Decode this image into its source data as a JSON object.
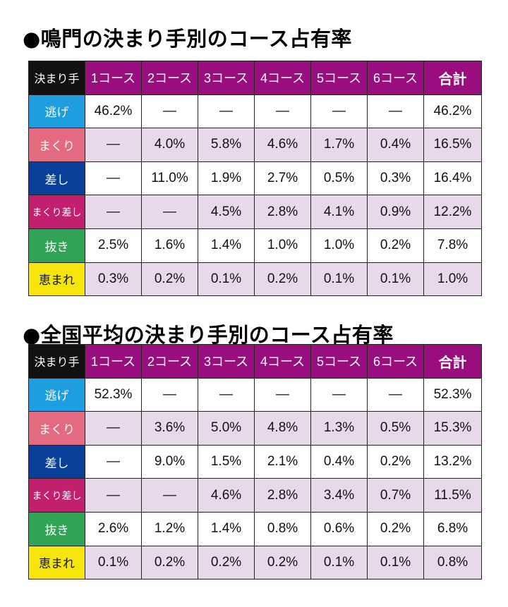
{
  "colors": {
    "header_bg": "#9a0d7f",
    "corner_bg": "#111111",
    "row_alt_bg": "#e7d9ea",
    "nige": "#1d9ee0",
    "makuri": "#e36a7f",
    "sashi": "#0a3f9a",
    "makurizashi": "#c21f6f",
    "nuki": "#2fa455",
    "megumare": "#f5e50c"
  },
  "header": {
    "corner": "決まり手",
    "courses": [
      "1コース",
      "2コース",
      "3コース",
      "4コース",
      "5コース",
      "6コース"
    ],
    "total": "合計"
  },
  "tables": [
    {
      "title": "●鳴門の決まり手別のコース占有率",
      "rows": [
        {
          "label": "逃げ",
          "color": "#1d9ee0",
          "text_color": "#ffffff",
          "cells": [
            "46.2%",
            "—",
            "—",
            "—",
            "—",
            "—"
          ],
          "total": "46.2%"
        },
        {
          "label": "まくり",
          "color": "#e36a7f",
          "text_color": "#ffffff",
          "cells": [
            "—",
            "4.0%",
            "5.8%",
            "4.6%",
            "1.7%",
            "0.4%"
          ],
          "total": "16.5%"
        },
        {
          "label": "差し",
          "color": "#0a3f9a",
          "text_color": "#ffffff",
          "cells": [
            "—",
            "11.0%",
            "1.9%",
            "2.7%",
            "0.5%",
            "0.3%"
          ],
          "total": "16.4%"
        },
        {
          "label": "まくり差し",
          "color": "#c21f6f",
          "text_color": "#ffffff",
          "cells": [
            "—",
            "—",
            "4.5%",
            "2.8%",
            "4.1%",
            "0.9%"
          ],
          "total": "12.2%"
        },
        {
          "label": "抜き",
          "color": "#2fa455",
          "text_color": "#ffffff",
          "cells": [
            "2.5%",
            "1.6%",
            "1.4%",
            "1.0%",
            "1.0%",
            "0.2%"
          ],
          "total": "7.8%"
        },
        {
          "label": "恵まれ",
          "color": "#f5e50c",
          "text_color": "#111111",
          "cells": [
            "0.3%",
            "0.2%",
            "0.1%",
            "0.2%",
            "0.1%",
            "0.1%"
          ],
          "total": "1.0%"
        }
      ]
    },
    {
      "title": "●全国平均の決まり手別のコース占有率",
      "rows": [
        {
          "label": "逃げ",
          "color": "#1d9ee0",
          "text_color": "#ffffff",
          "cells": [
            "52.3%",
            "—",
            "—",
            "—",
            "—",
            "—"
          ],
          "total": "52.3%"
        },
        {
          "label": "まくり",
          "color": "#e36a7f",
          "text_color": "#ffffff",
          "cells": [
            "—",
            "3.6%",
            "5.0%",
            "4.8%",
            "1.3%",
            "0.5%"
          ],
          "total": "15.3%"
        },
        {
          "label": "差し",
          "color": "#0a3f9a",
          "text_color": "#ffffff",
          "cells": [
            "—",
            "9.0%",
            "1.5%",
            "2.1%",
            "0.4%",
            "0.2%"
          ],
          "total": "13.2%"
        },
        {
          "label": "まくり差し",
          "color": "#c21f6f",
          "text_color": "#ffffff",
          "cells": [
            "—",
            "—",
            "4.6%",
            "2.8%",
            "3.4%",
            "0.7%"
          ],
          "total": "11.5%"
        },
        {
          "label": "抜き",
          "color": "#2fa455",
          "text_color": "#ffffff",
          "cells": [
            "2.6%",
            "1.2%",
            "1.4%",
            "0.8%",
            "0.6%",
            "0.2%"
          ],
          "total": "6.8%"
        },
        {
          "label": "恵まれ",
          "color": "#f5e50c",
          "text_color": "#111111",
          "cells": [
            "0.1%",
            "0.2%",
            "0.2%",
            "0.2%",
            "0.1%",
            "0.1%"
          ],
          "total": "0.8%"
        }
      ]
    }
  ]
}
